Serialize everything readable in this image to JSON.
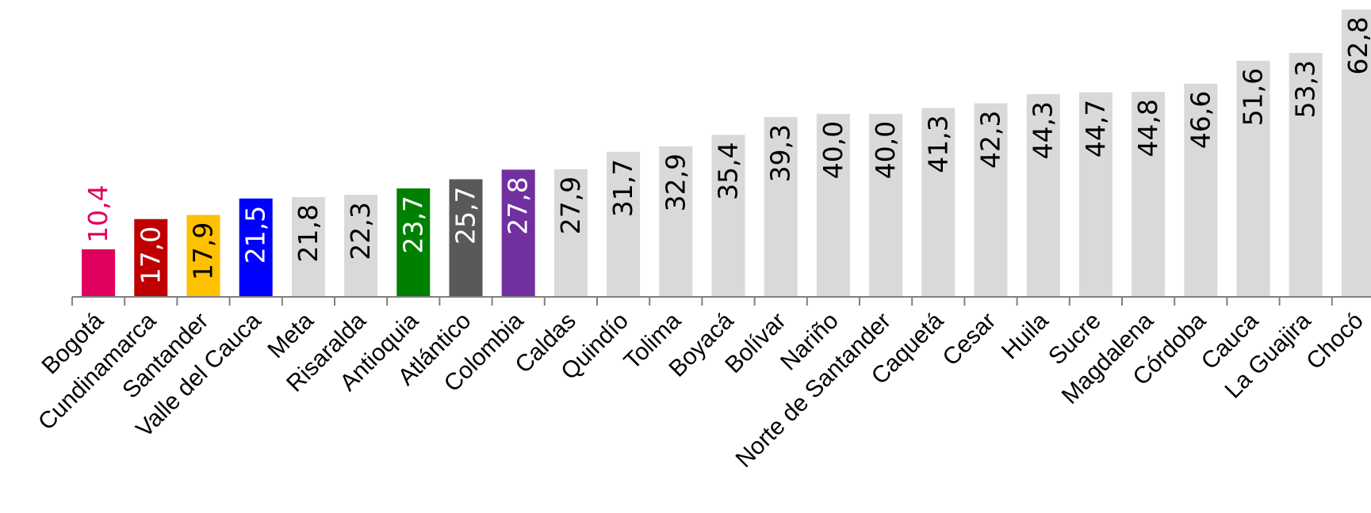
{
  "chart_data": {
    "type": "bar",
    "categories": [
      "Bogotá",
      "Cundinamarca",
      "Santander",
      "Valle del Cauca",
      "Meta",
      "Risaralda",
      "Antioquia",
      "Atlántico",
      "Colombia",
      "Caldas",
      "Quindío",
      "Tolima",
      "Boyacá",
      "Bolívar",
      "Nariño",
      "Norte de Santander",
      "Caquetá",
      "Cesar",
      "Huila",
      "Sucre",
      "Magdalena",
      "Córdoba",
      "Cauca",
      "La Guajira",
      "Chocó"
    ],
    "value_labels": [
      "10,4",
      "17,0",
      "17,9",
      "21,5",
      "21,8",
      "22,3",
      "23,7",
      "25,7",
      "27,8",
      "27,9",
      "31,7",
      "32,9",
      "35,4",
      "39,3",
      "40,0",
      "40,0",
      "41,3",
      "42,3",
      "44,3",
      "44,7",
      "44,8",
      "46,6",
      "51,6",
      "53,3",
      "62,8"
    ],
    "values": [
      10.4,
      17.0,
      17.9,
      21.5,
      21.8,
      22.3,
      23.7,
      25.7,
      27.8,
      27.9,
      31.7,
      32.9,
      35.4,
      39.3,
      40.0,
      40.0,
      41.3,
      42.3,
      44.3,
      44.7,
      44.8,
      46.6,
      51.6,
      53.3,
      62.8
    ],
    "bar_colors": [
      "#e0005e",
      "#c00000",
      "#ffc000",
      "#0000ff",
      "#d9d9d9",
      "#d9d9d9",
      "#008000",
      "#595959",
      "#7030a0",
      "#d9d9d9",
      "#d9d9d9",
      "#d9d9d9",
      "#d9d9d9",
      "#d9d9d9",
      "#d9d9d9",
      "#d9d9d9",
      "#d9d9d9",
      "#d9d9d9",
      "#d9d9d9",
      "#d9d9d9",
      "#d9d9d9",
      "#d9d9d9",
      "#d9d9d9",
      "#d9d9d9",
      "#d9d9d9"
    ],
    "label_colors": [
      "#e0005e",
      "#ffffff",
      "#000000",
      "#ffffff",
      "#000000",
      "#000000",
      "#ffffff",
      "#ffffff",
      "#ffffff",
      "#000000",
      "#000000",
      "#000000",
      "#000000",
      "#000000",
      "#000000",
      "#000000",
      "#000000",
      "#000000",
      "#000000",
      "#000000",
      "#000000",
      "#000000",
      "#000000",
      "#000000",
      "#000000"
    ],
    "label_outside": [
      true,
      false,
      false,
      false,
      false,
      false,
      false,
      false,
      false,
      false,
      false,
      false,
      false,
      false,
      false,
      false,
      false,
      false,
      false,
      false,
      false,
      false,
      false,
      false,
      false
    ],
    "ylim": [
      0,
      62.8
    ],
    "grid": false,
    "legend": "none",
    "title": "",
    "xlabel": "",
    "ylabel": ""
  }
}
